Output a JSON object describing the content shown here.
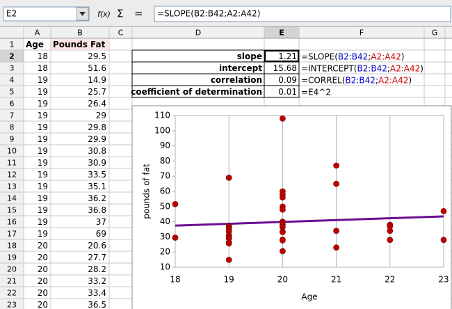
{
  "toolbar": {
    "name_box": "E2",
    "function_wizard": "f(x)",
    "sum": "Σ",
    "equals": "=",
    "formula": "=SLOPE(B2:B42;A2:A42)"
  },
  "columns": [
    "A",
    "B",
    "C",
    "D",
    "E",
    "F",
    "G"
  ],
  "rows": [
    1,
    2,
    3,
    4,
    5,
    6,
    7,
    8,
    9,
    10,
    11,
    12,
    13,
    14,
    15,
    16,
    17,
    18,
    19,
    20,
    21,
    22,
    23
  ],
  "sheet": {
    "header": [
      "Age",
      "Pounds Fat"
    ],
    "data": [
      [
        18,
        29.5
      ],
      [
        18,
        51.6
      ],
      [
        19,
        14.9
      ],
      [
        19,
        25.7
      ],
      [
        19,
        26.4
      ],
      [
        19,
        29
      ],
      [
        19,
        29.8
      ],
      [
        19,
        29.9
      ],
      [
        19,
        30.8
      ],
      [
        19,
        30.9
      ],
      [
        19,
        33.5
      ],
      [
        19,
        35.1
      ],
      [
        19,
        36.2
      ],
      [
        19,
        36.8
      ],
      [
        19,
        37
      ],
      [
        19,
        69
      ],
      [
        20,
        20.6
      ],
      [
        20,
        27.7
      ],
      [
        20,
        28.2
      ],
      [
        20,
        33.2
      ],
      [
        20,
        33.4
      ],
      [
        20,
        36.5
      ]
    ]
  },
  "stats": [
    {
      "label": "slope",
      "value": 1.21,
      "formula": [
        {
          "text": "=SLOPE(",
          "color": "#000000"
        },
        {
          "text": "B2:B42",
          "color": "#0000cc"
        },
        {
          "text": ";",
          "color": "#000000"
        },
        {
          "text": "A2:A42",
          "color": "#cc0000"
        },
        {
          "text": ")",
          "color": "#000000"
        }
      ]
    },
    {
      "label": "intercept",
      "value": 15.68,
      "formula": [
        {
          "text": "=INTERCEPT(",
          "color": "#000000"
        },
        {
          "text": "B2:B42",
          "color": "#0000cc"
        },
        {
          "text": ";",
          "color": "#000000"
        },
        {
          "text": "A2:A42",
          "color": "#cc0000"
        },
        {
          "text": ")",
          "color": "#000000"
        }
      ]
    },
    {
      "label": "correlation",
      "value": 0.09,
      "formula": [
        {
          "text": "=CORREL(",
          "color": "#000000"
        },
        {
          "text": "B2:B42",
          "color": "#0000cc"
        },
        {
          "text": ";",
          "color": "#000000"
        },
        {
          "text": "A2:A42",
          "color": "#cc0000"
        },
        {
          "text": ")",
          "color": "#000000"
        }
      ]
    },
    {
      "label": "coefficient of determination",
      "value": 0.01,
      "formula": [
        {
          "text": "=E4^2",
          "color": "#000000"
        }
      ]
    }
  ],
  "chart_data": {
    "type": "scatter",
    "x_label": "Age",
    "y_label": "pounds of fat",
    "color": "#c00000",
    "trendline_color": "#6a0d91",
    "x": [
      18,
      18,
      19,
      19,
      19,
      19,
      19,
      19,
      19,
      19,
      19,
      19,
      19,
      19,
      19,
      19,
      20,
      20,
      20,
      20,
      20,
      20,
      20,
      20,
      20,
      20,
      20,
      20,
      20,
      20,
      21,
      21,
      21,
      21,
      22,
      22,
      22,
      22,
      23,
      23
    ],
    "values": [
      51.6,
      29.5,
      69,
      37,
      36.8,
      36.2,
      35.1,
      33.5,
      30.9,
      30.8,
      29.9,
      29.8,
      29,
      26.4,
      25.7,
      14.9,
      108,
      60,
      58,
      56,
      50,
      48,
      40,
      38,
      36.5,
      33.4,
      33.2,
      28.2,
      27.7,
      20.6,
      77,
      65,
      34,
      23,
      38,
      37,
      34,
      28,
      47,
      28
    ],
    "xlim": [
      18,
      23
    ],
    "xticks": [
      18,
      19,
      20,
      21,
      22,
      23
    ],
    "ylim": [
      10,
      110
    ],
    "yticks": [
      10,
      20,
      30,
      40,
      50,
      60,
      70,
      80,
      90,
      100,
      110
    ],
    "grid": true
  }
}
